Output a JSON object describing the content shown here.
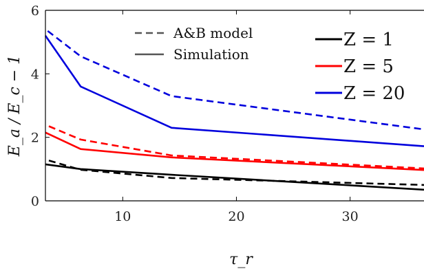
{
  "chart_data": {
    "type": "line",
    "xlabel": "τ_r",
    "ylabel": "E_a / E_c − 1",
    "xlim": [
      3.2,
      36.5
    ],
    "ylim": [
      0,
      6
    ],
    "xticks": [
      10,
      20,
      30
    ],
    "yticks": [
      0,
      2,
      4,
      6
    ],
    "grid": false,
    "legend_styles": [
      {
        "label": "A&B model",
        "dash": "dashed",
        "color": "#555555"
      },
      {
        "label": "Simulation",
        "dash": "solid",
        "color": "#555555"
      }
    ],
    "legend_z": [
      {
        "label": "Z = 1",
        "color": "#000000"
      },
      {
        "label": "Z = 5",
        "color": "#ff0000"
      },
      {
        "label": "Z = 20",
        "color": "#0000dd"
      }
    ],
    "series": [
      {
        "name": "Z = 1",
        "style": "Simulation",
        "color": "#000000",
        "dash": "solid",
        "x": [
          3.2,
          6.3,
          14.3,
          36.5
        ],
        "y": [
          1.15,
          1.0,
          0.82,
          0.35
        ]
      },
      {
        "name": "Z = 1",
        "style": "A&B model",
        "color": "#000000",
        "dash": "dashed",
        "x": [
          3.5,
          6.3,
          14.3,
          36.5
        ],
        "y": [
          1.27,
          0.98,
          0.72,
          0.5
        ]
      },
      {
        "name": "Z = 5",
        "style": "Simulation",
        "color": "#ff0000",
        "dash": "solid",
        "x": [
          3.2,
          6.3,
          14.3,
          36.5
        ],
        "y": [
          2.15,
          1.63,
          1.37,
          0.97
        ]
      },
      {
        "name": "Z = 5",
        "style": "A&B model",
        "color": "#ff0000",
        "dash": "dashed",
        "x": [
          3.5,
          6.3,
          14.3,
          36.5
        ],
        "y": [
          2.35,
          1.93,
          1.43,
          1.02
        ]
      },
      {
        "name": "Z = 20",
        "style": "Simulation",
        "color": "#0000dd",
        "dash": "solid",
        "x": [
          3.2,
          6.3,
          14.3,
          36.5
        ],
        "y": [
          5.2,
          3.6,
          2.3,
          1.72
        ]
      },
      {
        "name": "Z = 20",
        "style": "A&B model",
        "color": "#0000dd",
        "dash": "dashed",
        "x": [
          3.4,
          6.3,
          14.3,
          36.5
        ],
        "y": [
          5.35,
          4.55,
          3.3,
          2.25
        ]
      }
    ]
  }
}
